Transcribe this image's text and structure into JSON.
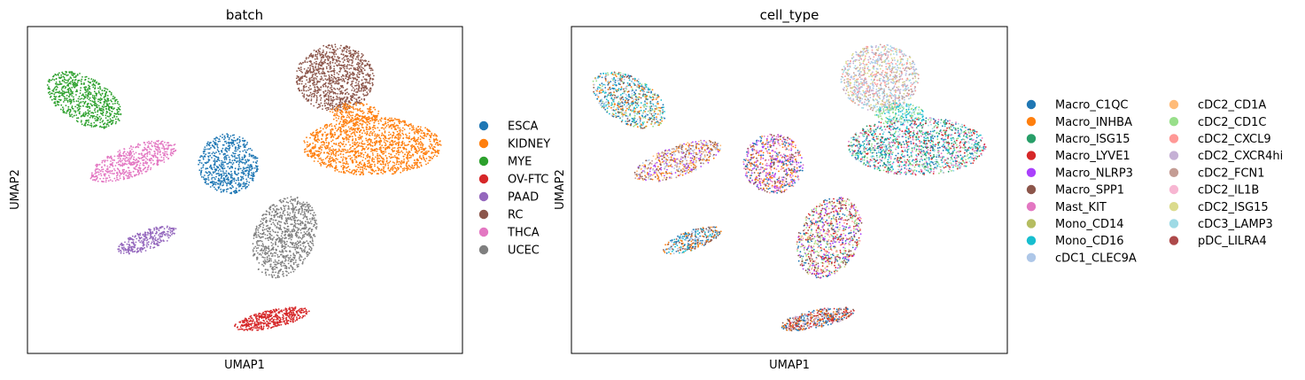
{
  "chart_data": [
    {
      "type": "scatter",
      "title": "batch",
      "xlabel": "UMAP1",
      "ylabel": "UMAP2",
      "grid": false,
      "axis_ticks": false,
      "legend_position": "right",
      "legend": [
        {
          "label": "ESCA",
          "color": "#1f77b4"
        },
        {
          "label": "KIDNEY",
          "color": "#ff7f0e"
        },
        {
          "label": "MYE",
          "color": "#2ca02c"
        },
        {
          "label": "OV-FTC",
          "color": "#d62728"
        },
        {
          "label": "PAAD",
          "color": "#9467bd"
        },
        {
          "label": "RC",
          "color": "#8c564b"
        },
        {
          "label": "THCA",
          "color": "#e377c2"
        },
        {
          "label": "UCEC",
          "color": "#7f7f7f"
        }
      ]
    },
    {
      "type": "scatter",
      "title": "cell_type",
      "xlabel": "UMAP1",
      "ylabel": "UMAP2",
      "grid": false,
      "axis_ticks": false,
      "legend_position": "right",
      "legend": [
        {
          "label": "Macro_C1QC",
          "color": "#1f77b4"
        },
        {
          "label": "Macro_INHBA",
          "color": "#ff7f0e"
        },
        {
          "label": "Macro_ISG15",
          "color": "#279e68"
        },
        {
          "label": "Macro_LYVE1",
          "color": "#d62728"
        },
        {
          "label": "Macro_NLRP3",
          "color": "#aa40fc"
        },
        {
          "label": "Macro_SPP1",
          "color": "#8c564b"
        },
        {
          "label": "Mast_KIT",
          "color": "#e377c2"
        },
        {
          "label": "Mono_CD14",
          "color": "#b5bd61"
        },
        {
          "label": "Mono_CD16",
          "color": "#17becf"
        },
        {
          "label": "cDC1_CLEC9A",
          "color": "#aec7e8"
        },
        {
          "label": "cDC2_CD1A",
          "color": "#ffbb78"
        },
        {
          "label": "cDC2_CD1C",
          "color": "#98df8a"
        },
        {
          "label": "cDC2_CXCL9",
          "color": "#ff9896"
        },
        {
          "label": "cDC2_CXCR4hi",
          "color": "#c5b0d5"
        },
        {
          "label": "cDC2_FCN1",
          "color": "#c49c94"
        },
        {
          "label": "cDC2_IL1B",
          "color": "#f7b6d2"
        },
        {
          "label": "cDC2_ISG15",
          "color": "#dbdb8d"
        },
        {
          "label": "cDC3_LAMP3",
          "color": "#9edae5"
        },
        {
          "label": "pDC_LILRA4",
          "color": "#ad494a"
        }
      ]
    }
  ]
}
